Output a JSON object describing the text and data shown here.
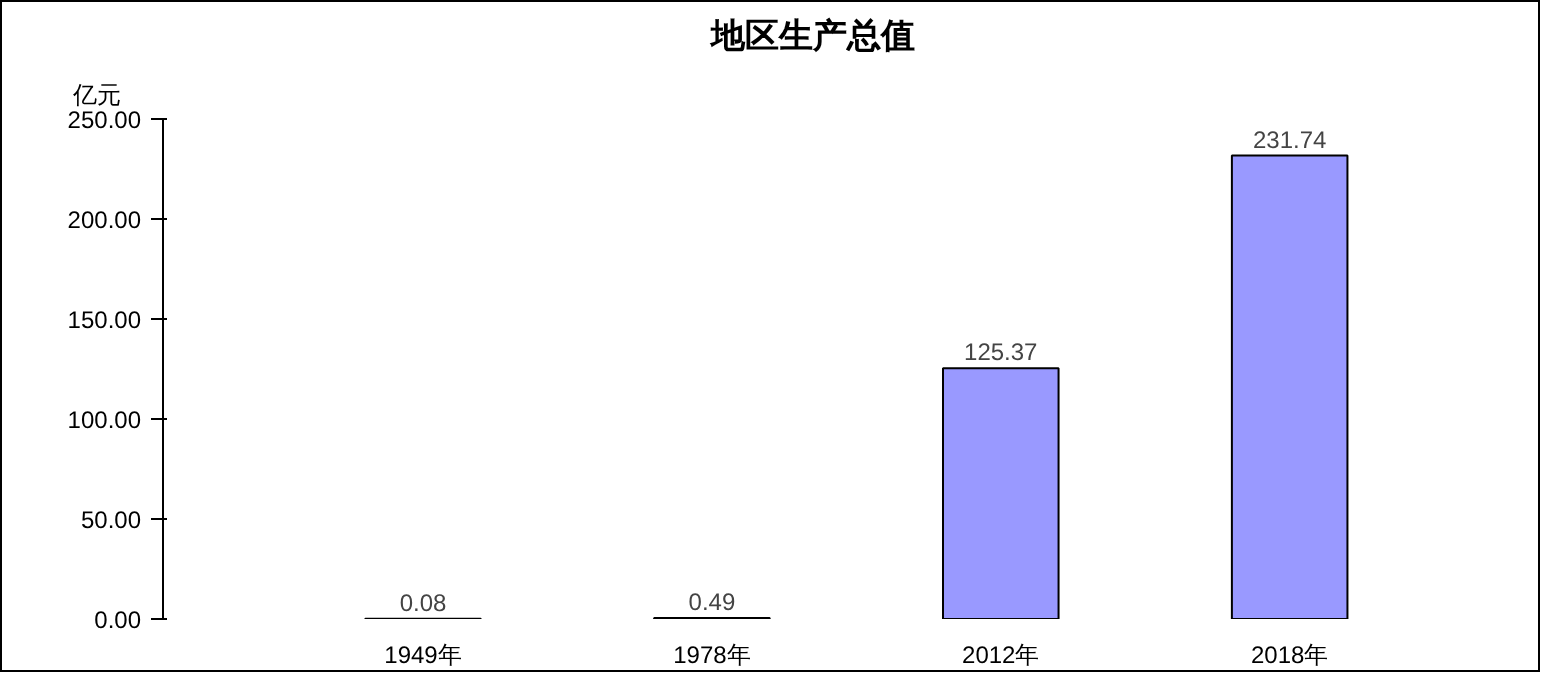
{
  "chart_data": {
    "type": "bar",
    "title": "地区生产总值",
    "ylabel": "亿元",
    "categories": [
      "1949年",
      "1978年",
      "2012年",
      "2018年"
    ],
    "values": [
      0.08,
      0.49,
      125.37,
      231.74
    ],
    "color": "#9999ff",
    "ylim": [
      0,
      250
    ],
    "yticks": [
      {
        "value": 0,
        "label": "0.00"
      },
      {
        "value": 50,
        "label": "50.00"
      },
      {
        "value": 100,
        "label": "100.00"
      },
      {
        "value": 150,
        "label": "150.00"
      },
      {
        "value": 200,
        "label": "200.00"
      },
      {
        "value": 250,
        "label": "250.00"
      }
    ],
    "data_labels": true,
    "grid": false
  }
}
